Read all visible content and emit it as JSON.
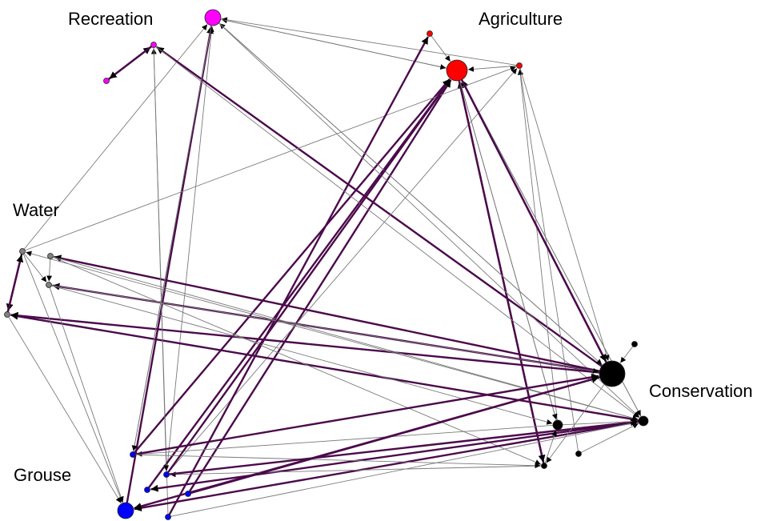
{
  "diagram": {
    "groups": [
      {
        "id": "recreation",
        "label": "Recreation",
        "color": "#ff00ff"
      },
      {
        "id": "agriculture",
        "label": "Agriculture",
        "color": "#ff0000"
      },
      {
        "id": "water",
        "label": "Water",
        "color": "#808080"
      },
      {
        "id": "grouse",
        "label": "Grouse",
        "color": "#0000ff"
      },
      {
        "id": "conservation",
        "label": "Conservation",
        "color": "#000000"
      }
    ],
    "edge_colors": {
      "weak": "#7a7a7a",
      "strong": "#4b0a4b"
    },
    "nodes": [
      {
        "id": "R1",
        "group": "recreation",
        "degree": "high"
      },
      {
        "id": "R2",
        "group": "recreation",
        "degree": "low"
      },
      {
        "id": "R3",
        "group": "recreation",
        "degree": "low"
      },
      {
        "id": "A1",
        "group": "agriculture",
        "degree": "high"
      },
      {
        "id": "A2",
        "group": "agriculture",
        "degree": "low"
      },
      {
        "id": "A3",
        "group": "agriculture",
        "degree": "low"
      },
      {
        "id": "W1",
        "group": "water",
        "degree": "low"
      },
      {
        "id": "W2",
        "group": "water",
        "degree": "low"
      },
      {
        "id": "W3",
        "group": "water",
        "degree": "low"
      },
      {
        "id": "W4",
        "group": "water",
        "degree": "low"
      },
      {
        "id": "G1",
        "group": "grouse",
        "degree": "high"
      },
      {
        "id": "G2",
        "group": "grouse",
        "degree": "low"
      },
      {
        "id": "G3",
        "group": "grouse",
        "degree": "low"
      },
      {
        "id": "G4",
        "group": "grouse",
        "degree": "low"
      },
      {
        "id": "G5",
        "group": "grouse",
        "degree": "low"
      },
      {
        "id": "G6",
        "group": "grouse",
        "degree": "low"
      },
      {
        "id": "C1",
        "group": "conservation",
        "degree": "high"
      },
      {
        "id": "C2",
        "group": "conservation",
        "degree": "mid"
      },
      {
        "id": "C3",
        "group": "conservation",
        "degree": "mid"
      },
      {
        "id": "C4",
        "group": "conservation",
        "degree": "low"
      },
      {
        "id": "C5",
        "group": "conservation",
        "degree": "low"
      },
      {
        "id": "C6",
        "group": "conservation",
        "degree": "low"
      }
    ],
    "edges": [
      {
        "from": "C1",
        "to": "R1",
        "strength": "weak"
      },
      {
        "from": "G2",
        "to": "R1",
        "strength": "weak"
      },
      {
        "from": "G4",
        "to": "R1",
        "strength": "weak"
      },
      {
        "from": "W1",
        "to": "R1",
        "strength": "weak"
      },
      {
        "from": "A1",
        "to": "R1",
        "strength": "weak"
      },
      {
        "from": "A3",
        "to": "R1",
        "strength": "weak"
      },
      {
        "from": "G1",
        "to": "R1",
        "strength": "strong"
      },
      {
        "from": "R3",
        "to": "R2",
        "strength": "strong"
      },
      {
        "from": "R2",
        "to": "R3",
        "strength": "strong"
      },
      {
        "from": "G3",
        "to": "R2",
        "strength": "weak"
      },
      {
        "from": "C1",
        "to": "R2",
        "strength": "strong"
      },
      {
        "from": "C3",
        "to": "A1",
        "strength": "weak"
      },
      {
        "from": "A2",
        "to": "A1",
        "strength": "weak"
      },
      {
        "from": "A3",
        "to": "A1",
        "strength": "weak"
      },
      {
        "from": "C1",
        "to": "A1",
        "strength": "strong"
      },
      {
        "from": "C2",
        "to": "A1",
        "strength": "weak"
      },
      {
        "from": "C4",
        "to": "A1",
        "strength": "strong"
      },
      {
        "from": "G2",
        "to": "A1",
        "strength": "strong"
      },
      {
        "from": "G5",
        "to": "A1",
        "strength": "strong"
      },
      {
        "from": "G6",
        "to": "A1",
        "strength": "strong"
      },
      {
        "from": "R1",
        "to": "A1",
        "strength": "weak"
      },
      {
        "from": "C5",
        "to": "A3",
        "strength": "weak"
      },
      {
        "from": "C2",
        "to": "A3",
        "strength": "weak"
      },
      {
        "from": "G4",
        "to": "A3",
        "strength": "weak"
      },
      {
        "from": "W1",
        "to": "A3",
        "strength": "weak"
      },
      {
        "from": "G3",
        "to": "A2",
        "strength": "strong"
      },
      {
        "from": "A1",
        "to": "C4",
        "strength": "strong"
      },
      {
        "from": "A1",
        "to": "C2",
        "strength": "weak"
      },
      {
        "from": "A1",
        "to": "C3",
        "strength": "weak"
      },
      {
        "from": "R1",
        "to": "C1",
        "strength": "weak"
      },
      {
        "from": "R1",
        "to": "C3",
        "strength": "weak"
      },
      {
        "from": "R2",
        "to": "C3",
        "strength": "weak"
      },
      {
        "from": "A1",
        "to": "C1",
        "strength": "strong"
      },
      {
        "from": "A3",
        "to": "C1",
        "strength": "weak"
      },
      {
        "from": "W1",
        "to": "W4",
        "strength": "strong"
      },
      {
        "from": "W4",
        "to": "W1",
        "strength": "strong"
      },
      {
        "from": "W1",
        "to": "W3",
        "strength": "weak"
      },
      {
        "from": "W2",
        "to": "W3",
        "strength": "weak"
      },
      {
        "from": "C1",
        "to": "W2",
        "strength": "strong"
      },
      {
        "from": "C1",
        "to": "W3",
        "strength": "strong"
      },
      {
        "from": "C1",
        "to": "W4",
        "strength": "strong"
      },
      {
        "from": "C3",
        "to": "W4",
        "strength": "strong"
      },
      {
        "from": "C3",
        "to": "W1",
        "strength": "weak"
      },
      {
        "from": "W3",
        "to": "C1",
        "strength": "weak"
      },
      {
        "from": "W2",
        "to": "C3",
        "strength": "weak"
      },
      {
        "from": "W3",
        "to": "C2",
        "strength": "weak"
      },
      {
        "from": "W2",
        "to": "C4",
        "strength": "weak"
      },
      {
        "from": "W4",
        "to": "G1",
        "strength": "weak"
      },
      {
        "from": "W1",
        "to": "G1",
        "strength": "weak"
      },
      {
        "from": "W3",
        "to": "G1",
        "strength": "weak"
      },
      {
        "from": "R1",
        "to": "G2",
        "strength": "weak"
      },
      {
        "from": "R2",
        "to": "G4",
        "strength": "weak"
      },
      {
        "from": "C2",
        "to": "G2",
        "strength": "weak"
      },
      {
        "from": "C3",
        "to": "G6",
        "strength": "strong"
      },
      {
        "from": "C1",
        "to": "G1",
        "strength": "strong"
      },
      {
        "from": "C3",
        "to": "G1",
        "strength": "strong"
      },
      {
        "from": "C4",
        "to": "G4",
        "strength": "weak"
      },
      {
        "from": "G2",
        "to": "C1",
        "strength": "strong"
      },
      {
        "from": "G2",
        "to": "C4",
        "strength": "weak"
      },
      {
        "from": "G3",
        "to": "C3",
        "strength": "weak"
      },
      {
        "from": "G4",
        "to": "C3",
        "strength": "strong"
      },
      {
        "from": "G5",
        "to": "C1",
        "strength": "strong"
      },
      {
        "from": "C2",
        "to": "C3",
        "strength": "weak"
      },
      {
        "from": "C5",
        "to": "C3",
        "strength": "weak"
      },
      {
        "from": "C4",
        "to": "C2",
        "strength": "weak"
      },
      {
        "from": "C6",
        "to": "C1",
        "strength": "weak"
      },
      {
        "from": "C1",
        "to": "C4",
        "strength": "weak"
      },
      {
        "from": "G4",
        "to": "A1",
        "strength": "strong"
      }
    ]
  }
}
